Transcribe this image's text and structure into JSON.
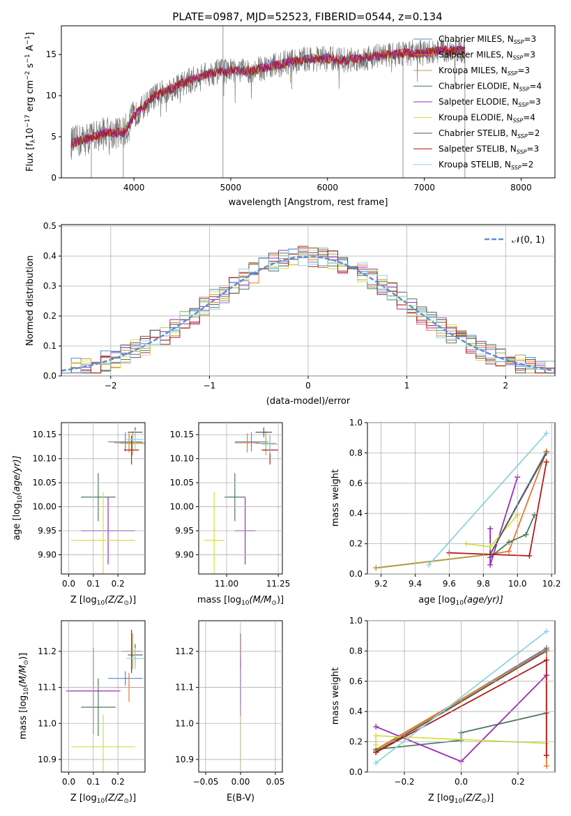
{
  "chart_data": [
    {
      "type": "line",
      "title": "PLATE=0987, MJD=52523, FIBERID=0544, z=0.134",
      "xlabel": "wavelength [Angstrom, rest frame]",
      "ylabel": "Flux [f",
      "xlim": [
        3250,
        8350
      ],
      "ylim": [
        0,
        18.5
      ],
      "xticks": [
        4000,
        5000,
        6000,
        7000,
        8000
      ],
      "yticks": [
        0,
        5,
        10,
        15
      ],
      "legend_placement": "upper-right",
      "grid": false,
      "series": [
        {
          "name": "Chabrier MILES, N",
          "sub": "SSP",
          "suffix": "=3",
          "color": "#4e86d8"
        },
        {
          "name": "Salpeter MILES, N",
          "sub": "SSP",
          "suffix": "=3",
          "color": "#e8762c"
        },
        {
          "name": "Kroupa MILES, N",
          "sub": "SSP",
          "suffix": "=3",
          "color": "#b8a040"
        },
        {
          "name": "Chabrier ELODIE, N",
          "sub": "SSP",
          "suffix": "=4",
          "color": "#4a7a5a"
        },
        {
          "name": "Salpeter ELODIE, N",
          "sub": "SSP",
          "suffix": "=3",
          "color": "#9a2aba"
        },
        {
          "name": "Kroupa ELODIE, N",
          "sub": "SSP",
          "suffix": "=4",
          "color": "#d6e040"
        },
        {
          "name": "Chabrier STELIB, N",
          "sub": "SSP",
          "suffix": "=2",
          "color": "#555555"
        },
        {
          "name": "Salpeter STELIB, N",
          "sub": "SSP",
          "suffix": "=3",
          "color": "#b01818"
        },
        {
          "name": "Kroupa STELIB, N",
          "sub": "SSP",
          "suffix": "=2",
          "color": "#8fd3e0"
        }
      ],
      "continuum": {
        "x": [
          3350,
          3500,
          3700,
          3900,
          4000,
          4200,
          4500,
          4800,
          5000,
          5200,
          5500,
          5800,
          6000,
          6200,
          6500,
          6800,
          7000,
          7200,
          7400
        ],
        "y": [
          4.2,
          4.7,
          5.5,
          5.5,
          7.5,
          9.8,
          11.5,
          12.8,
          13.0,
          13.0,
          13.8,
          14.5,
          14.5,
          14.3,
          14.8,
          15.2,
          15.2,
          15.5,
          15.5
        ]
      }
    },
    {
      "type": "histogram",
      "xlabel": "(data-model)/error",
      "ylabel": "Normed distribution",
      "xlim": [
        -2.5,
        2.5
      ],
      "ylim": [
        0,
        0.505
      ],
      "xticks": [
        -2,
        -1,
        0,
        1,
        2
      ],
      "yticks": [
        0.0,
        0.1,
        0.2,
        0.3,
        0.4,
        0.5
      ],
      "grid": true,
      "legend_placement": "upper-right",
      "reference_curve": {
        "name": "N(0,1)",
        "color": "#5a8fd6"
      },
      "bin_width": 0.1
    },
    {
      "type": "errorbar",
      "xlabel": "Z [log",
      "ylabel": "age  [log",
      "xlim": [
        -0.03,
        0.31
      ],
      "ylim": [
        9.86,
        10.175
      ],
      "xticks": [
        0.0,
        0.1,
        0.2
      ],
      "yticks": [
        9.9,
        9.95,
        10.0,
        10.05,
        10.1,
        10.15
      ],
      "grid": true,
      "points": [
        {
          "series": "Chabrier MILES",
          "x": 0.23,
          "xerr": 0.07,
          "y": 10.135,
          "yerr": 0.02
        },
        {
          "series": "Salpeter MILES",
          "x": 0.245,
          "xerr": 0.06,
          "y": 10.133,
          "yerr": 0.02
        },
        {
          "series": "Kroupa MILES",
          "x": 0.26,
          "xerr": 0.05,
          "y": 10.132,
          "yerr": 0.025
        },
        {
          "series": "Chabrier ELODIE",
          "x": 0.12,
          "xerr": 0.07,
          "y": 10.02,
          "yerr": 0.05
        },
        {
          "series": "Salpeter ELODIE",
          "x": 0.16,
          "xerr": 0.11,
          "y": 9.95,
          "yerr": 0.07
        },
        {
          "series": "Kroupa ELODIE",
          "x": 0.14,
          "xerr": 0.13,
          "y": 9.93,
          "yerr": 0.1
        },
        {
          "series": "Chabrier STELIB",
          "x": 0.27,
          "xerr": 0.03,
          "y": 10.155,
          "yerr": 0.01
        },
        {
          "series": "Salpeter STELIB",
          "x": 0.255,
          "xerr": 0.03,
          "y": 10.118,
          "yerr": 0.03
        },
        {
          "series": "Kroupa STELIB",
          "x": 0.27,
          "xerr": 0.035,
          "y": 10.14,
          "yerr": 0.02
        }
      ]
    },
    {
      "type": "errorbar",
      "xlabel": "mass [log",
      "xlim": [
        10.865,
        11.27
      ],
      "ylim": [
        9.86,
        10.175
      ],
      "xticks": [
        11.0,
        11.25
      ],
      "yticks": [
        9.9,
        9.95,
        10.0,
        10.05,
        10.1,
        10.15
      ],
      "grid": true,
      "points": [
        {
          "series": "Chabrier MILES",
          "x": 11.12,
          "xerr": 0.08,
          "y": 10.135,
          "yerr": 0.02
        },
        {
          "series": "Salpeter MILES",
          "x": 11.1,
          "xerr": 0.06,
          "y": 10.133,
          "yerr": 0.02
        },
        {
          "series": "Kroupa MILES",
          "x": 11.19,
          "xerr": 0.05,
          "y": 10.132,
          "yerr": 0.025
        },
        {
          "series": "Chabrier ELODIE",
          "x": 11.04,
          "xerr": 0.05,
          "y": 10.02,
          "yerr": 0.05
        },
        {
          "series": "Salpeter ELODIE",
          "x": 11.09,
          "xerr": 0.05,
          "y": 9.95,
          "yerr": 0.07
        },
        {
          "series": "Kroupa ELODIE",
          "x": 10.94,
          "xerr": 0.05,
          "y": 9.93,
          "yerr": 0.1
        },
        {
          "series": "Chabrier STELIB",
          "x": 11.18,
          "xerr": 0.04,
          "y": 10.155,
          "yerr": 0.01
        },
        {
          "series": "Salpeter STELIB",
          "x": 11.21,
          "xerr": 0.04,
          "y": 10.118,
          "yerr": 0.03
        },
        {
          "series": "Kroupa STELIB",
          "x": 11.21,
          "xerr": 0.04,
          "y": 10.13,
          "yerr": 0.02
        }
      ]
    },
    {
      "type": "line",
      "xlabel": "age  [log",
      "ylabel": "mass weight",
      "xlim": [
        9.12,
        10.22
      ],
      "ylim": [
        0,
        1.0
      ],
      "xticks": [
        9.2,
        9.4,
        9.6,
        9.8,
        10.0,
        10.2
      ],
      "yticks": [
        0.0,
        0.2,
        0.4,
        0.6,
        0.8,
        1.0
      ],
      "grid": true,
      "series": [
        {
          "series": "Chabrier MILES",
          "x": [
            9.17,
            9.84,
            10.17
          ],
          "y": [
            0.04,
            0.13,
            0.81
          ]
        },
        {
          "series": "Salpeter MILES",
          "x": [
            9.17,
            9.84,
            9.95,
            10.17
          ],
          "y": [
            0.04,
            0.13,
            0.15,
            0.81
          ]
        },
        {
          "series": "Kroupa MILES",
          "x": [
            9.17,
            9.84,
            10.17
          ],
          "y": [
            0.04,
            0.13,
            0.8
          ]
        },
        {
          "series": "Chabrier ELODIE",
          "x": [
            9.84,
            9.95,
            10.05,
            10.1
          ],
          "y": [
            0.11,
            0.21,
            0.26,
            0.39
          ]
        },
        {
          "series": "Salpeter ELODIE",
          "x": [
            9.84,
            9.84,
            10.0
          ],
          "y": [
            0.3,
            0.06,
            0.64
          ]
        },
        {
          "series": "Kroupa ELODIE",
          "x": [
            9.7,
            9.84,
            10.0
          ],
          "y": [
            0.2,
            0.18,
            0.39
          ]
        },
        {
          "series": "Chabrier STELIB",
          "x": [
            9.84,
            10.17
          ],
          "y": [
            0.13,
            0.8
          ]
        },
        {
          "series": "Salpeter STELIB",
          "x": [
            9.6,
            10.07,
            10.17
          ],
          "y": [
            0.14,
            0.12,
            0.74
          ]
        },
        {
          "series": "Kroupa STELIB",
          "x": [
            9.48,
            10.17
          ],
          "y": [
            0.06,
            0.93
          ]
        }
      ]
    },
    {
      "type": "errorbar",
      "xlabel": "Z [log",
      "ylabel": "mass [log",
      "xlim": [
        -0.03,
        0.31
      ],
      "ylim": [
        10.865,
        11.285
      ],
      "xticks": [
        0.0,
        0.1,
        0.2
      ],
      "yticks": [
        10.9,
        11.0,
        11.1,
        11.2
      ],
      "grid": true,
      "points": [
        {
          "series": "Chabrier MILES",
          "x": 0.23,
          "xerr": 0.07,
          "y": 11.125,
          "yerr": 0.02
        },
        {
          "series": "Salpeter MILES",
          "x": 0.245,
          "xerr": 0.06,
          "y": 11.1,
          "yerr": 0.04
        },
        {
          "series": "Kroupa MILES",
          "x": 0.26,
          "xerr": 0.04,
          "y": 11.2,
          "yerr": 0.05
        },
        {
          "series": "Chabrier ELODIE",
          "x": 0.12,
          "xerr": 0.07,
          "y": 11.045,
          "yerr": 0.08
        },
        {
          "series": "Salpeter ELODIE",
          "x": 0.1,
          "xerr": 0.11,
          "y": 11.09,
          "yerr": 0.12
        },
        {
          "series": "Kroupa ELODIE",
          "x": 0.14,
          "xerr": 0.13,
          "y": 10.935,
          "yerr": 0.09
        },
        {
          "series": "Chabrier STELIB",
          "x": 0.27,
          "xerr": 0.03,
          "y": 11.19,
          "yerr": 0.03
        },
        {
          "series": "Salpeter STELIB",
          "x": 0.255,
          "xerr": 0.04,
          "y": 11.2,
          "yerr": 0.06
        },
        {
          "series": "Kroupa STELIB",
          "x": 0.27,
          "xerr": 0.035,
          "y": 11.18,
          "yerr": 0.03
        }
      ]
    },
    {
      "type": "errorbar",
      "xlabel": "E(B-V)",
      "xlim": [
        -0.06,
        0.06
      ],
      "ylim": [
        10.865,
        11.285
      ],
      "xticks": [
        -0.05,
        0.0,
        0.05
      ],
      "xticklabels": [
        "−0.05",
        "0.00",
        "0.05"
      ],
      "yticks": [
        10.9,
        11.0,
        11.1,
        11.2
      ],
      "grid": true,
      "points": [
        {
          "series": "Kroupa ELODIE",
          "x": 0.0,
          "xerr": 0,
          "y": 11.0,
          "yerr": 0.13
        },
        {
          "series": "Chabrier MILES",
          "x": 0.0,
          "xerr": 0,
          "y": 11.15,
          "yerr": 0.1
        },
        {
          "series": "Salpeter STELIB",
          "x": 0.0,
          "xerr": 0,
          "y": 11.2,
          "yerr": 0.05
        },
        {
          "series": "Salpeter ELODIE",
          "x": 0.0,
          "xerr": 0,
          "y": 11.1,
          "yerr": 0.08
        }
      ]
    },
    {
      "type": "line",
      "xlabel": "Z [log",
      "ylabel": "mass weight",
      "xlim": [
        -0.33,
        0.33
      ],
      "ylim": [
        0,
        1.0
      ],
      "xticks": [
        -0.2,
        0.0,
        0.2
      ],
      "xticklabels": [
        "−0.2",
        "0.0",
        "0.2"
      ],
      "yticks": [
        0.0,
        0.2,
        0.4,
        0.6,
        0.8,
        1.0
      ],
      "grid": true,
      "series": [
        {
          "series": "Chabrier MILES",
          "x": [
            -0.3,
            0.3
          ],
          "y": [
            0.14,
            0.82
          ]
        },
        {
          "series": "Salpeter MILES",
          "x": [
            -0.3,
            0.3,
            0.3
          ],
          "y": [
            0.15,
            0.81,
            0.04
          ]
        },
        {
          "series": "Kroupa MILES",
          "x": [
            -0.3,
            0.3
          ],
          "y": [
            0.14,
            0.8
          ]
        },
        {
          "series": "Chabrier ELODIE",
          "x": [
            -0.3,
            0.0,
            0.0,
            0.3
          ],
          "y": [
            0.15,
            0.21,
            0.26,
            0.39
          ]
        },
        {
          "series": "Salpeter ELODIE",
          "x": [
            -0.3,
            0.0,
            0.3
          ],
          "y": [
            0.3,
            0.07,
            0.64
          ]
        },
        {
          "series": "Kroupa ELODIE",
          "x": [
            -0.3,
            -0.3,
            0.3
          ],
          "y": [
            0.18,
            0.24,
            0.19
          ]
        },
        {
          "series": "Chabrier STELIB",
          "x": [
            -0.3,
            0.3
          ],
          "y": [
            0.13,
            0.8
          ]
        },
        {
          "series": "Salpeter STELIB",
          "x": [
            -0.3,
            0.3,
            0.3
          ],
          "y": [
            0.13,
            0.74,
            0.11
          ]
        },
        {
          "series": "Kroupa STELIB",
          "x": [
            -0.3,
            0.3
          ],
          "y": [
            0.06,
            0.93
          ]
        }
      ]
    }
  ],
  "labels": {
    "p1_ylabel_flux": "Flux [f",
    "p1_ylabel_lambda": "λ",
    "p1_ylabel_unit1": "10",
    "p1_ylabel_exp1": "−17",
    "p1_ylabel_unit2": " erg cm",
    "p1_ylabel_exp2": "−2",
    "p1_ylabel_unit3": " s",
    "p1_ylabel_exp3": "−1",
    "p1_ylabel_unit4": " A",
    "p1_ylabel_exp4": "−1",
    "p1_ylabel_end": "]",
    "log_sub": "10",
    "z_over": "(Z/Z",
    "sun": "⊙",
    "close_paren": ")]",
    "age_over": "(age/yr)]",
    "mass_over": "(M/M",
    "normal_legend": "𝒩(0, 1)"
  }
}
